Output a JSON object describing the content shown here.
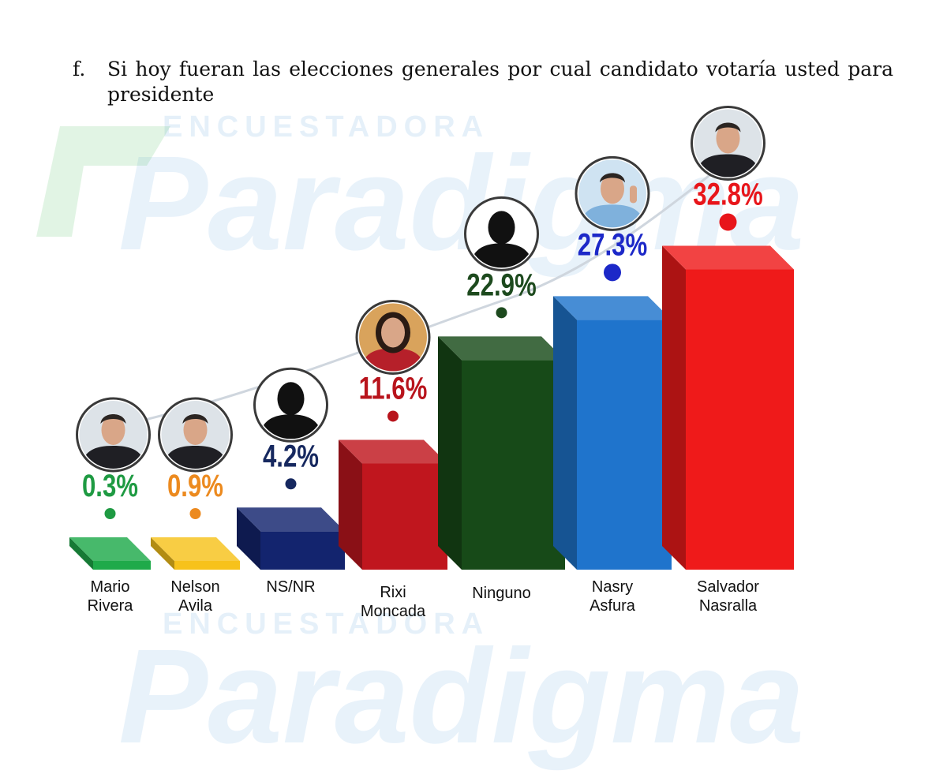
{
  "question": {
    "letter": "f.",
    "text": "Si hoy fueran las elecciones generales por cual candidato votaría usted para presidente"
  },
  "watermark": {
    "top": "ENCUESTADORA",
    "brand": "Paradigma"
  },
  "chart_data": {
    "type": "bar",
    "title": "",
    "categories": [
      "Mario Rivera",
      "Nelson Avila",
      "NS/NR",
      "Rixi Moncada",
      "Ninguno",
      "Nasry Asfura",
      "Salvador Nasralla"
    ],
    "label_lines": [
      [
        "Mario",
        "Rivera"
      ],
      [
        "Nelson",
        "Avila"
      ],
      [
        "NS/NR"
      ],
      [
        "Rixi",
        "Moncada"
      ],
      [
        "Ninguno"
      ],
      [
        "Nasry",
        "Asfura"
      ],
      [
        "Salvador",
        "Nasralla"
      ]
    ],
    "values": [
      0.3,
      0.9,
      4.2,
      11.6,
      22.9,
      27.3,
      32.8
    ],
    "value_labels": [
      "0.3%",
      "0.9%",
      "4.2%",
      "11.6%",
      "22.9%",
      "27.3%",
      "32.8%"
    ],
    "unit": "%",
    "colors": [
      "#1faa4a",
      "#f7c21b",
      "#13246e",
      "#c0161e",
      "#174a18",
      "#1f74cc",
      "#ef1a1a"
    ],
    "label_colors": [
      "#1e9a42",
      "#ec8a1f",
      "#16285f",
      "#b8141c",
      "#1d4a1e",
      "#1c28c8",
      "#e8151a"
    ],
    "photos": [
      "man-portrait-icon",
      "man-portrait-icon",
      "silhouette-icon",
      "woman-portrait-icon",
      "silhouette-icon",
      "man-thumbs-up-icon",
      "man-portrait-icon"
    ],
    "ylim": [
      0,
      35
    ],
    "grid": false,
    "legend": "none"
  }
}
